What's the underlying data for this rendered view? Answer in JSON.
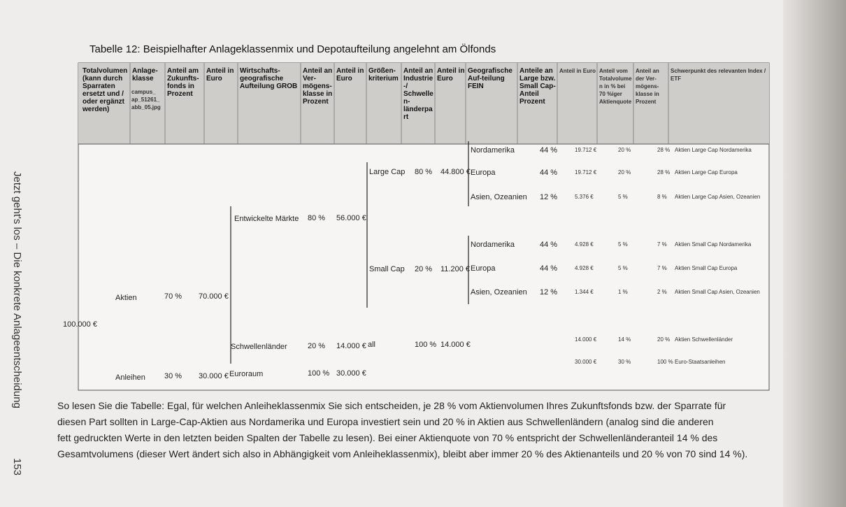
{
  "side": {
    "running_head": "Jetzt geht's los – Die konkrete Anlageentscheidung",
    "page_number": "153"
  },
  "table": {
    "caption": "Tabelle 12: Beispielhafter Anlageklassenmix und Depotaufteilung angelehnt am Ölfonds",
    "headers": [
      "Totalvolumen (kann durch Sparraten ersetzt und / oder ergänzt werden)",
      "Anlage-klasse",
      "Anteil am Zukunfts-fonds in Prozent",
      "Anteil in Euro",
      "Wirtschafts-geografische Aufteilung GROB",
      "Anteil an Ver-mögens-klasse in Prozent",
      "Anteil in Euro",
      "Größen-kriterium",
      "Anteil an Industrie-/ Schwellen-länderpart",
      "Anteil in Euro",
      "Geografische Auf-teilung FEIN",
      "Anteile an Large bzw. Small Cap-Anteil Prozent",
      "Anteil in Euro",
      "Anteil vom Totalvolumen in % bei 70 %iger Aktienquote",
      "Anteil an der Ver-mögens-klasse in Prozent",
      "Schwerpunkt des relevanten Index / ETF"
    ],
    "image_note": "campus_ ap_51261_ abb_05.jpg",
    "total": "100.000 €",
    "asset_classes": [
      {
        "name": "Aktien",
        "share": "70 %",
        "euro": "70.000 €"
      },
      {
        "name": "Anleihen",
        "share": "30 %",
        "euro": "30.000 €"
      }
    ],
    "regions": [
      {
        "name": "Entwickelte Märkte",
        "share": "80 %",
        "euro": "56.000 €"
      },
      {
        "name": "Schwellenländer",
        "share": "20 %",
        "euro": "14.000 €"
      },
      {
        "name": "Euroraum",
        "share": "100 %",
        "euro": "30.000 €"
      }
    ],
    "sizes": [
      {
        "name": "Large Cap",
        "share": "80 %",
        "euro": "44.800 €"
      },
      {
        "name": "Small Cap",
        "share": "20 %",
        "euro": "11.200 €"
      },
      {
        "name": "all",
        "share": "100 %",
        "euro": "14.000 €"
      }
    ],
    "rows": [
      [
        "Nordamerika",
        "44 %",
        "19.712 €",
        "20 %",
        "28 %",
        "Aktien Large Cap Nordamerika"
      ],
      [
        "Europa",
        "44 %",
        "19.712 €",
        "20 %",
        "28 %",
        "Aktien Large Cap Europa"
      ],
      [
        "Asien, Ozeanien",
        "12 %",
        "5.376 €",
        "5 %",
        "8 %",
        "Aktien Large Cap Asien, Ozeanien"
      ],
      [
        "Nordamerika",
        "44 %",
        "4.928 €",
        "5 %",
        "7 %",
        "Aktien Small Cap Nordamerika"
      ],
      [
        "Europa",
        "44 %",
        "4.928 €",
        "5 %",
        "7 %",
        "Aktien Small Cap Europa"
      ],
      [
        "Asien, Ozeanien",
        "12 %",
        "1.344 €",
        "1 %",
        "2 %",
        "Aktien Small Cap Asien, Ozeanien"
      ],
      [
        null,
        null,
        "14.000 €",
        "14 %",
        "20 %",
        "Aktien Schwellenländer"
      ],
      [
        null,
        null,
        "30.000 €",
        "30 %",
        "100 %",
        "Euro-Staatsanleihen"
      ]
    ]
  },
  "paragraph": {
    "lines": [
      "So lesen Sie die Tabelle: Egal, für welchen Anleiheklassenmix Sie sich entscheiden, je 28 % vom Aktienvolumen Ihres Zukunftsfonds bzw. der Sparrate für",
      "diesen Part sollten in Large-Cap-Aktien aus Nordamerika und Europa investiert sein und 20 % in Aktien aus Schwellenländern (analog sind die anderen",
      "fett gedruckten Werte in den letzten beiden Spalten der Tabelle zu lesen). Bei einer Aktienquote von 70 % entspricht der Schwellenländeranteil 14 % des",
      "Gesamtvolumens (dieser Wert ändert sich also in Abhängigkeit vom Anleiheklassenmix), bleibt aber immer 20 % des Aktienanteils und 20 % von 70 sind 14 %)."
    ]
  }
}
